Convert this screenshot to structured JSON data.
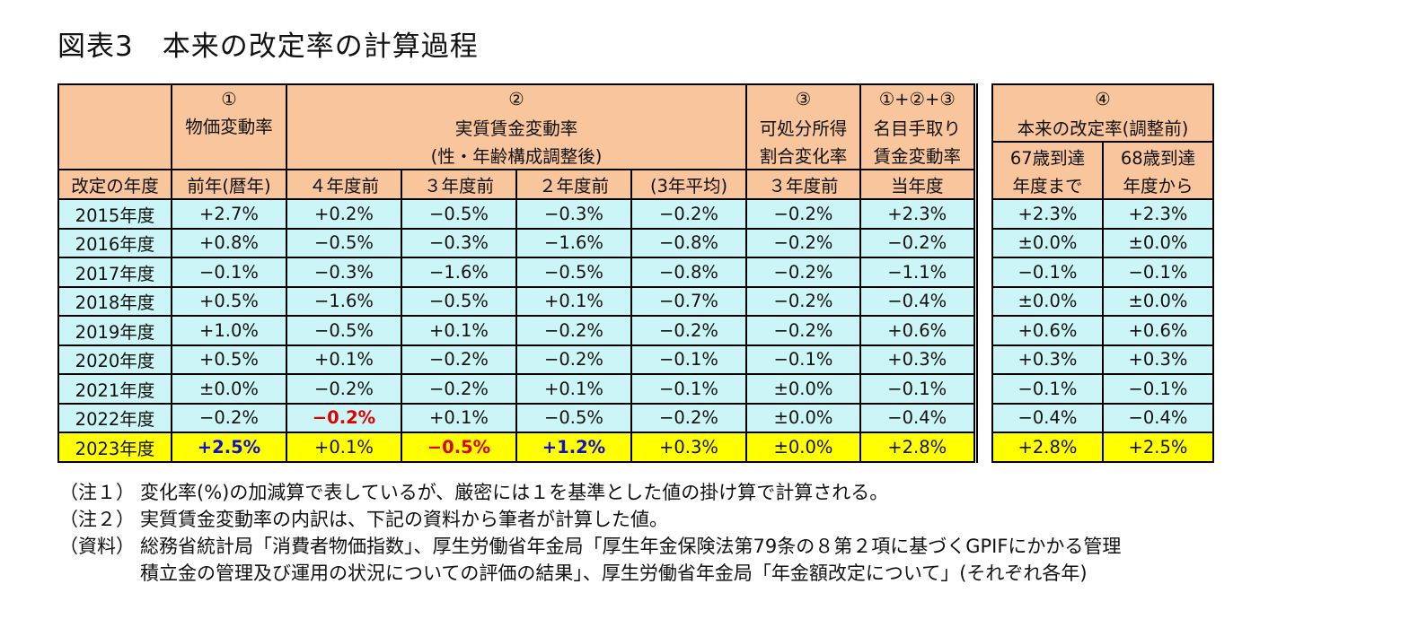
{
  "title": "図表3　本来の改定率の計算過程",
  "headers": {
    "year_col": "改定の年度",
    "g1_num": "①",
    "g1_name": "物価変動率",
    "g1_sub": "前年(暦年)",
    "g2_num": "②",
    "g2_name": "実質賃金変動率",
    "g2_sub": "(性・年齢構成調整後)",
    "g2_cols": [
      "４年度前",
      "３年度前",
      "２年度前",
      "(3年平均)"
    ],
    "g3_num": "③",
    "g3_line1": "可処分所得",
    "g3_line2": "割合変化率",
    "g3_sub": "３年度前",
    "g4_num": "①+②+③",
    "g4_line1": "名目手取り",
    "g4_line2": "賃金変動率",
    "g4_sub": "当年度",
    "g5_num": "④",
    "g5_name": "本来の改定率(調整前)",
    "g5_col1": [
      "67歳到達",
      "年度まで"
    ],
    "g5_col2": [
      "68歳到達",
      "年度から"
    ]
  },
  "rows": [
    {
      "year": "2015年度",
      "main": [
        "+2.7%",
        "+0.2%",
        "−0.5%",
        "−0.3%",
        "−0.2%",
        "−0.2%",
        "+2.3%"
      ],
      "right": [
        "+2.3%",
        "+2.3%"
      ]
    },
    {
      "year": "2016年度",
      "main": [
        "+0.8%",
        "−0.5%",
        "−0.3%",
        "−1.6%",
        "−0.8%",
        "−0.2%",
        "−0.2%"
      ],
      "right": [
        "±0.0%",
        "±0.0%"
      ]
    },
    {
      "year": "2017年度",
      "main": [
        "−0.1%",
        "−0.3%",
        "−1.6%",
        "−0.5%",
        "−0.8%",
        "−0.2%",
        "−1.1%"
      ],
      "right": [
        "−0.1%",
        "−0.1%"
      ]
    },
    {
      "year": "2018年度",
      "main": [
        "+0.5%",
        "−1.6%",
        "−0.5%",
        "+0.1%",
        "−0.7%",
        "−0.2%",
        "−0.4%"
      ],
      "right": [
        "±0.0%",
        "±0.0%"
      ]
    },
    {
      "year": "2019年度",
      "main": [
        "+1.0%",
        "−0.5%",
        "+0.1%",
        "−0.2%",
        "−0.2%",
        "−0.2%",
        "+0.6%"
      ],
      "right": [
        "+0.6%",
        "+0.6%"
      ]
    },
    {
      "year": "2020年度",
      "main": [
        "+0.5%",
        "+0.1%",
        "−0.2%",
        "−0.2%",
        "−0.1%",
        "−0.1%",
        "+0.3%"
      ],
      "right": [
        "+0.3%",
        "+0.3%"
      ]
    },
    {
      "year": "2021年度",
      "main": [
        "±0.0%",
        "−0.2%",
        "−0.2%",
        "+0.1%",
        "−0.1%",
        "±0.0%",
        "−0.1%"
      ],
      "right": [
        "−0.1%",
        "−0.1%"
      ]
    },
    {
      "year": "2022年度",
      "main": [
        "−0.2%",
        "−0.2%",
        "+0.1%",
        "−0.5%",
        "−0.2%",
        "±0.0%",
        "−0.4%"
      ],
      "right": [
        "−0.4%",
        "−0.4%"
      ]
    },
    {
      "year": "2023年度",
      "main": [
        "+2.5%",
        "+0.1%",
        "−0.5%",
        "+1.2%",
        "+0.3%",
        "±0.0%",
        "+2.8%"
      ],
      "right": [
        "+2.8%",
        "+2.5%"
      ]
    }
  ],
  "emphasis_colors": {
    "red": "#e00000",
    "blue": "#1010c8",
    "highlight_row": "#ffff00",
    "header_bg": "#f9c59c",
    "data_bg": "#ccf5f7"
  },
  "notes": [
    {
      "tag": "（注１）",
      "text": "変化率(%)の加減算で表しているが、厳密には１を基準とした値の掛け算で計算される。"
    },
    {
      "tag": "（注２）",
      "text": "実質賃金変動率の内訳は、下記の資料から筆者が計算した値。"
    },
    {
      "tag": "（資料）",
      "text": " 総務省統計局「消費者物価指数」、厚生労働省年金局「厚生年金保険法第79条の８第２項に基づくGPIFにかかる管理"
    },
    {
      "tag": "",
      "text": "積立金の管理及び運用の状況についての評価の結果」、厚生労働省年金局「年金額改定について」(それぞれ各年)"
    }
  ]
}
